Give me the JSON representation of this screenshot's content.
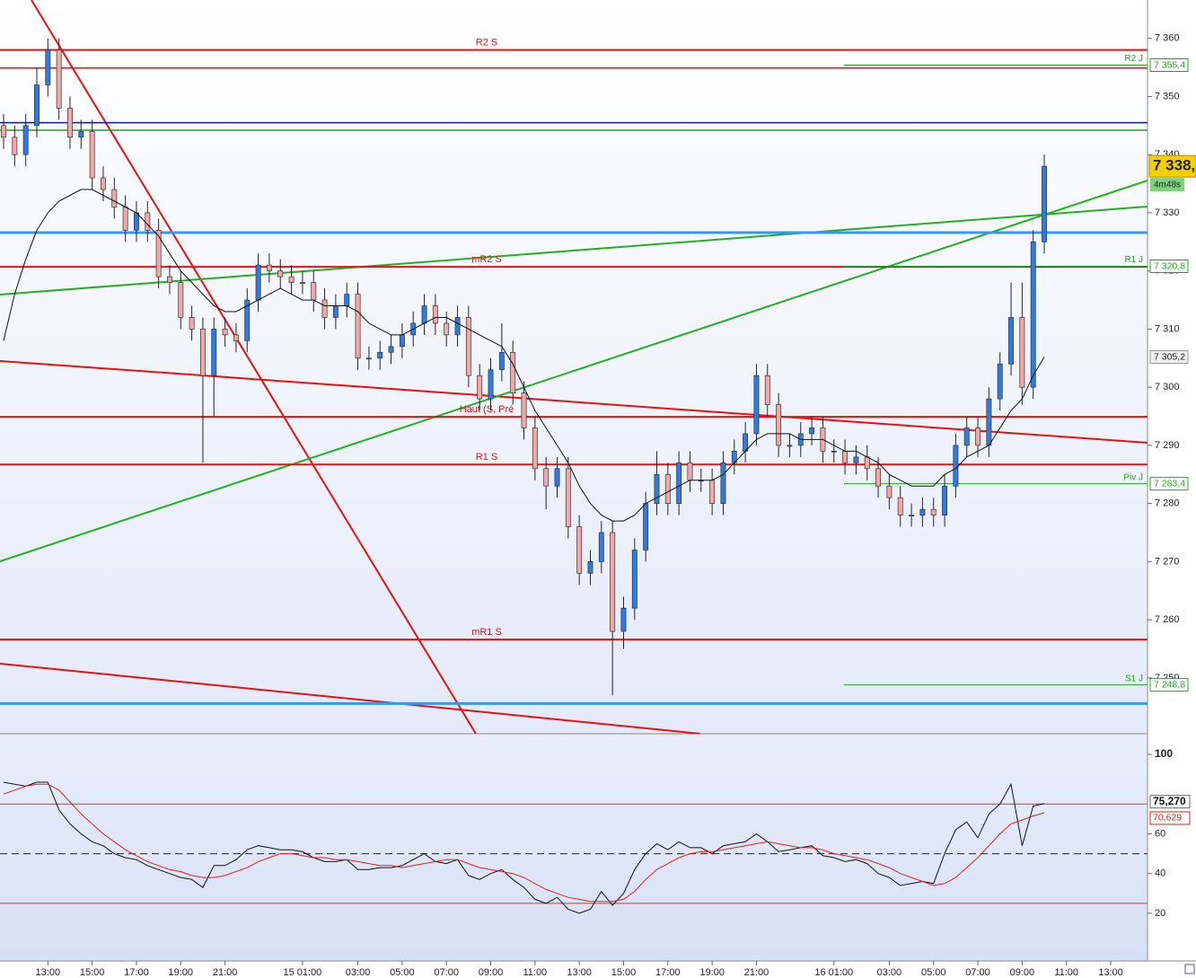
{
  "chart_data": {
    "type": "candlestick",
    "categories": [
      null,
      null,
      null,
      null,
      "13:00",
      null,
      null,
      null,
      "15:00",
      null,
      null,
      null,
      "17:00",
      null,
      null,
      null,
      "19:00",
      null,
      null,
      null,
      "21:00",
      null,
      null,
      null,
      null,
      null,
      null,
      "15 01:00",
      null,
      null,
      null,
      null,
      "03:00",
      null,
      null,
      null,
      "05:00",
      null,
      null,
      null,
      "07:00",
      null,
      null,
      null,
      "09:00",
      null,
      null,
      null,
      "11:00",
      null,
      null,
      null,
      "13:00",
      null,
      null,
      null,
      "15:00",
      null,
      null,
      null,
      "17:00",
      null,
      null,
      null,
      "19:00",
      null,
      null,
      null,
      "21:00",
      null,
      null,
      null,
      null,
      null,
      null,
      "16 01:00",
      null,
      null,
      null,
      null,
      "03:00",
      null,
      null,
      null,
      "05:00",
      null,
      null,
      null,
      "07:00",
      null,
      null,
      null,
      "09:00",
      null,
      null,
      null,
      "11:00",
      null,
      null,
      null,
      "13:00",
      null,
      null
    ],
    "open": [
      7345,
      7343,
      7340,
      7345,
      7352,
      7358,
      7348,
      7343,
      7344,
      7336,
      7334,
      7331,
      7327,
      7330,
      7327,
      7319,
      7318,
      7312,
      7310,
      7302,
      7310,
      7309,
      7308,
      7315,
      7321,
      7320,
      7319,
      7318,
      7318,
      7315,
      7312,
      7314,
      7316,
      7305,
      7305,
      7306,
      7307,
      7309,
      7311,
      7314,
      7311,
      7309,
      7312,
      7302,
      7298,
      7303,
      7306,
      7299,
      7293,
      7286,
      7283,
      7286,
      7276,
      7268,
      7270,
      7275,
      7258,
      7262,
      7272,
      7280,
      7285,
      7280,
      7287,
      7284,
      7284,
      7280,
      7287,
      7289,
      7292,
      7302,
      7297,
      7290,
      7290,
      7292,
      7293,
      7289,
      7289,
      7287,
      7288,
      7286,
      7283,
      7281,
      7278,
      7278,
      7279,
      7278,
      7283,
      7290,
      7293,
      7290,
      7298,
      7304,
      7312,
      7300,
      7325,
      null,
      null,
      null,
      null,
      null,
      null,
      null,
      null
    ],
    "high": [
      7347,
      7345,
      7347,
      7355,
      7360,
      7360,
      7350,
      7346,
      7346,
      7338,
      7336,
      7333,
      7332,
      7332,
      7329,
      7321,
      7320,
      7314,
      7312,
      7312,
      7312,
      7311,
      7317,
      7323,
      7323,
      7322,
      7321,
      7320,
      7320,
      7317,
      7316,
      7318,
      7318,
      7307,
      7308,
      7309,
      7311,
      7313,
      7316,
      7316,
      7313,
      7314,
      7314,
      7304,
      7305,
      7311,
      7308,
      7301,
      7295,
      7288,
      7288,
      7288,
      7278,
      7272,
      7277,
      7277,
      7264,
      7274,
      7282,
      7289,
      7287,
      7289,
      7289,
      7286,
      7286,
      7289,
      7291,
      7294,
      7304,
      7304,
      7299,
      7292,
      7294,
      7295,
      7295,
      7291,
      7291,
      7290,
      7290,
      7288,
      7285,
      7283,
      7280,
      7281,
      7281,
      7285,
      7292,
      7295,
      7295,
      7300,
      7306,
      7318,
      7318,
      7327,
      7340,
      null,
      null,
      null,
      null,
      null,
      null,
      null,
      null
    ],
    "low": [
      7341,
      7338,
      7338,
      7343,
      7350,
      7346,
      7341,
      7341,
      7334,
      7332,
      7329,
      7325,
      7325,
      7325,
      7317,
      7316,
      7310,
      7308,
      7287,
      7295,
      7307,
      7306,
      7306,
      7313,
      7318,
      7317,
      7316,
      7316,
      7313,
      7310,
      7310,
      7312,
      7303,
      7303,
      7303,
      7304,
      7305,
      7307,
      7309,
      7309,
      7307,
      7307,
      7300,
      7296,
      7296,
      7301,
      7297,
      7291,
      7284,
      7279,
      7281,
      7274,
      7266,
      7266,
      7268,
      7247,
      7255,
      7260,
      7270,
      7278,
      7278,
      7278,
      7282,
      7282,
      7278,
      7278,
      7285,
      7287,
      7290,
      7295,
      7288,
      7288,
      7288,
      7290,
      7287,
      7287,
      7285,
      7285,
      7284,
      7281,
      7279,
      7276,
      7276,
      7276,
      7276,
      7276,
      7281,
      7288,
      7288,
      7288,
      7296,
      7302,
      7297,
      7298,
      7323,
      null,
      null,
      null,
      null,
      null,
      null,
      null,
      null
    ],
    "close": [
      7343,
      7340,
      7345,
      7352,
      7358,
      7348,
      7343,
      7344,
      7336,
      7334,
      7331,
      7327,
      7330,
      7327,
      7319,
      7318,
      7312,
      7310,
      7302,
      7310,
      7309,
      7308,
      7315,
      7321,
      7320,
      7319,
      7318,
      7318,
      7315,
      7312,
      7314,
      7316,
      7305,
      7305,
      7306,
      7307,
      7309,
      7311,
      7314,
      7311,
      7309,
      7312,
      7302,
      7298,
      7303,
      7306,
      7299,
      7293,
      7286,
      7283,
      7286,
      7276,
      7268,
      7270,
      7275,
      7258,
      7262,
      7272,
      7280,
      7285,
      7280,
      7287,
      7284,
      7284,
      7280,
      7287,
      7289,
      7292,
      7302,
      7297,
      7290,
      7290,
      7292,
      7293,
      7289,
      7289,
      7287,
      7288,
      7286,
      7283,
      7281,
      7278,
      7278,
      7279,
      7278,
      7283,
      7290,
      7293,
      7290,
      7298,
      7304,
      7312,
      7300,
      7325,
      7338,
      null,
      null,
      null,
      null,
      null,
      null,
      null,
      null
    ],
    "up_color": "#2f7be0",
    "down_color": "#f0a8a8",
    "last_label": "7 338,",
    "timer": "4m48s",
    "ma": {
      "color": "#111111",
      "value_label": "7 305,2",
      "values": [
        7308,
        7316,
        7322,
        7327,
        7330,
        7332,
        7333,
        7334,
        7334,
        7333,
        7332,
        7331,
        7330,
        7328,
        7326,
        7323,
        7320,
        7318,
        7316,
        7314,
        7313,
        7313,
        7314,
        7315,
        7316,
        7317,
        7316,
        7315,
        7315,
        7314,
        7314,
        7314,
        7313,
        7311,
        7310,
        7309,
        7309,
        7310,
        7311,
        7312,
        7312,
        7311,
        7310,
        7309,
        7308,
        7307,
        7304,
        7300,
        7296,
        7293,
        7290,
        7287,
        7283,
        7280,
        7278,
        7277,
        7277,
        7278,
        7280,
        7281,
        7282,
        7283,
        7284,
        7284,
        7284,
        7285,
        7287,
        7289,
        7291,
        7292,
        7292,
        7292,
        7291,
        7291,
        7291,
        7290,
        7289,
        7289,
        7288,
        7287,
        7285,
        7284,
        7283,
        7283,
        7283,
        7285,
        7286,
        7288,
        7289,
        7290,
        7293,
        7296,
        7298,
        7302,
        7305.2,
        null,
        null,
        null,
        null,
        null,
        null,
        null,
        null
      ]
    },
    "ylim": [
      7240.4,
      7366.6
    ],
    "yticks": [
      {
        "value": 7250,
        "label": "7 250"
      },
      {
        "value": 7260,
        "label": "7 260"
      },
      {
        "value": 7270,
        "label": "7 270"
      },
      {
        "value": 7280,
        "label": "7 280"
      },
      {
        "value": 7290,
        "label": "7 290"
      },
      {
        "value": 7300,
        "label": "7 300"
      },
      {
        "value": 7310,
        "label": "7 310"
      },
      {
        "value": 7320,
        "label": "7 320"
      },
      {
        "value": 7330,
        "label": "7 330"
      },
      {
        "value": 7340,
        "label": "7 340"
      },
      {
        "value": 7350,
        "label": "7 350"
      },
      {
        "value": 7360,
        "label": "7 360"
      }
    ],
    "session_color": "#e81010",
    "session_levels": [
      {
        "name": "R2 S",
        "value": 7358.0
      },
      {
        "name": "mR2 S",
        "value": 7320.7
      },
      {
        "name": "Haut (S, Pré",
        "value": 7294.9
      },
      {
        "name": "R1 S",
        "value": 7286.7
      },
      {
        "name": "mR1 S",
        "value": 7256.6
      }
    ],
    "daily_color": "#22a022",
    "daily_levels": [
      {
        "name": "R2 J",
        "value": 7355.4,
        "label": "7 355,4"
      },
      {
        "name": "R1 J",
        "value": 7320.8,
        "label": "7 320,8"
      },
      {
        "name": "Piv J",
        "value": 7283.4,
        "label": "7 283,4"
      },
      {
        "name": "S1 J",
        "value": 7248.8,
        "label": "7 248,8"
      }
    ],
    "lines": [
      {
        "value": 7354.9,
        "color": "#e81010"
      },
      {
        "value": 7345.5,
        "color": "#0a1a9a"
      },
      {
        "value": 7344.2,
        "color": "#22a022"
      },
      {
        "value": 7326.6,
        "color": "#3399ee"
      },
      {
        "value": 7245.6,
        "color": "#3399ee"
      }
    ],
    "rsi": {
      "ylim": [
        -4,
        110.4
      ],
      "yticks": [
        20,
        40,
        60,
        100
      ],
      "levels": [
        75,
        25
      ],
      "level_color": "#e03030",
      "midline": 50,
      "series": [
        {
          "color": "#111111",
          "value_label": "75,270",
          "values": [
            86,
            85,
            84,
            86,
            86,
            72,
            65,
            60,
            56,
            54,
            50,
            48,
            47,
            44,
            42,
            40,
            38,
            37,
            33,
            44,
            44,
            47,
            52,
            54,
            53,
            52,
            52,
            51,
            48,
            46,
            46,
            47,
            42,
            42,
            43,
            43,
            44,
            47,
            50,
            46,
            45,
            47,
            39,
            37,
            40,
            42,
            37,
            33,
            27,
            25,
            28,
            22,
            20,
            22,
            31,
            24,
            30,
            42,
            50,
            55,
            52,
            56,
            53,
            53,
            50,
            54,
            55,
            56,
            60,
            56,
            51,
            52,
            53,
            54,
            49,
            48,
            46,
            47,
            45,
            40,
            38,
            34,
            35,
            36,
            35,
            50,
            62,
            66,
            58,
            70,
            75,
            85,
            54,
            74,
            75.27,
            null,
            null,
            null,
            null,
            null,
            null,
            null,
            null
          ]
        },
        {
          "color": "#e02020",
          "value_label": "70,629",
          "values": [
            80,
            82,
            84,
            85,
            85,
            82,
            76,
            70,
            65,
            60,
            56,
            52,
            49,
            46,
            44,
            42,
            41,
            39,
            38,
            38,
            39,
            41,
            43,
            46,
            48,
            50,
            50,
            49,
            48,
            48,
            47,
            47,
            46,
            45,
            44,
            44,
            43,
            44,
            45,
            46,
            47,
            47,
            45,
            43,
            42,
            41,
            40,
            38,
            35,
            32,
            30,
            28,
            27,
            26,
            26,
            26,
            27,
            31,
            37,
            42,
            45,
            48,
            50,
            51,
            51,
            52,
            53,
            54,
            55,
            56,
            55,
            54,
            53,
            53,
            52,
            50,
            49,
            48,
            47,
            45,
            43,
            40,
            38,
            36,
            34,
            35,
            38,
            43,
            48,
            54,
            60,
            65,
            67,
            69,
            70.629,
            null,
            null,
            null,
            null,
            null,
            null,
            null,
            null
          ]
        }
      ]
    }
  }
}
